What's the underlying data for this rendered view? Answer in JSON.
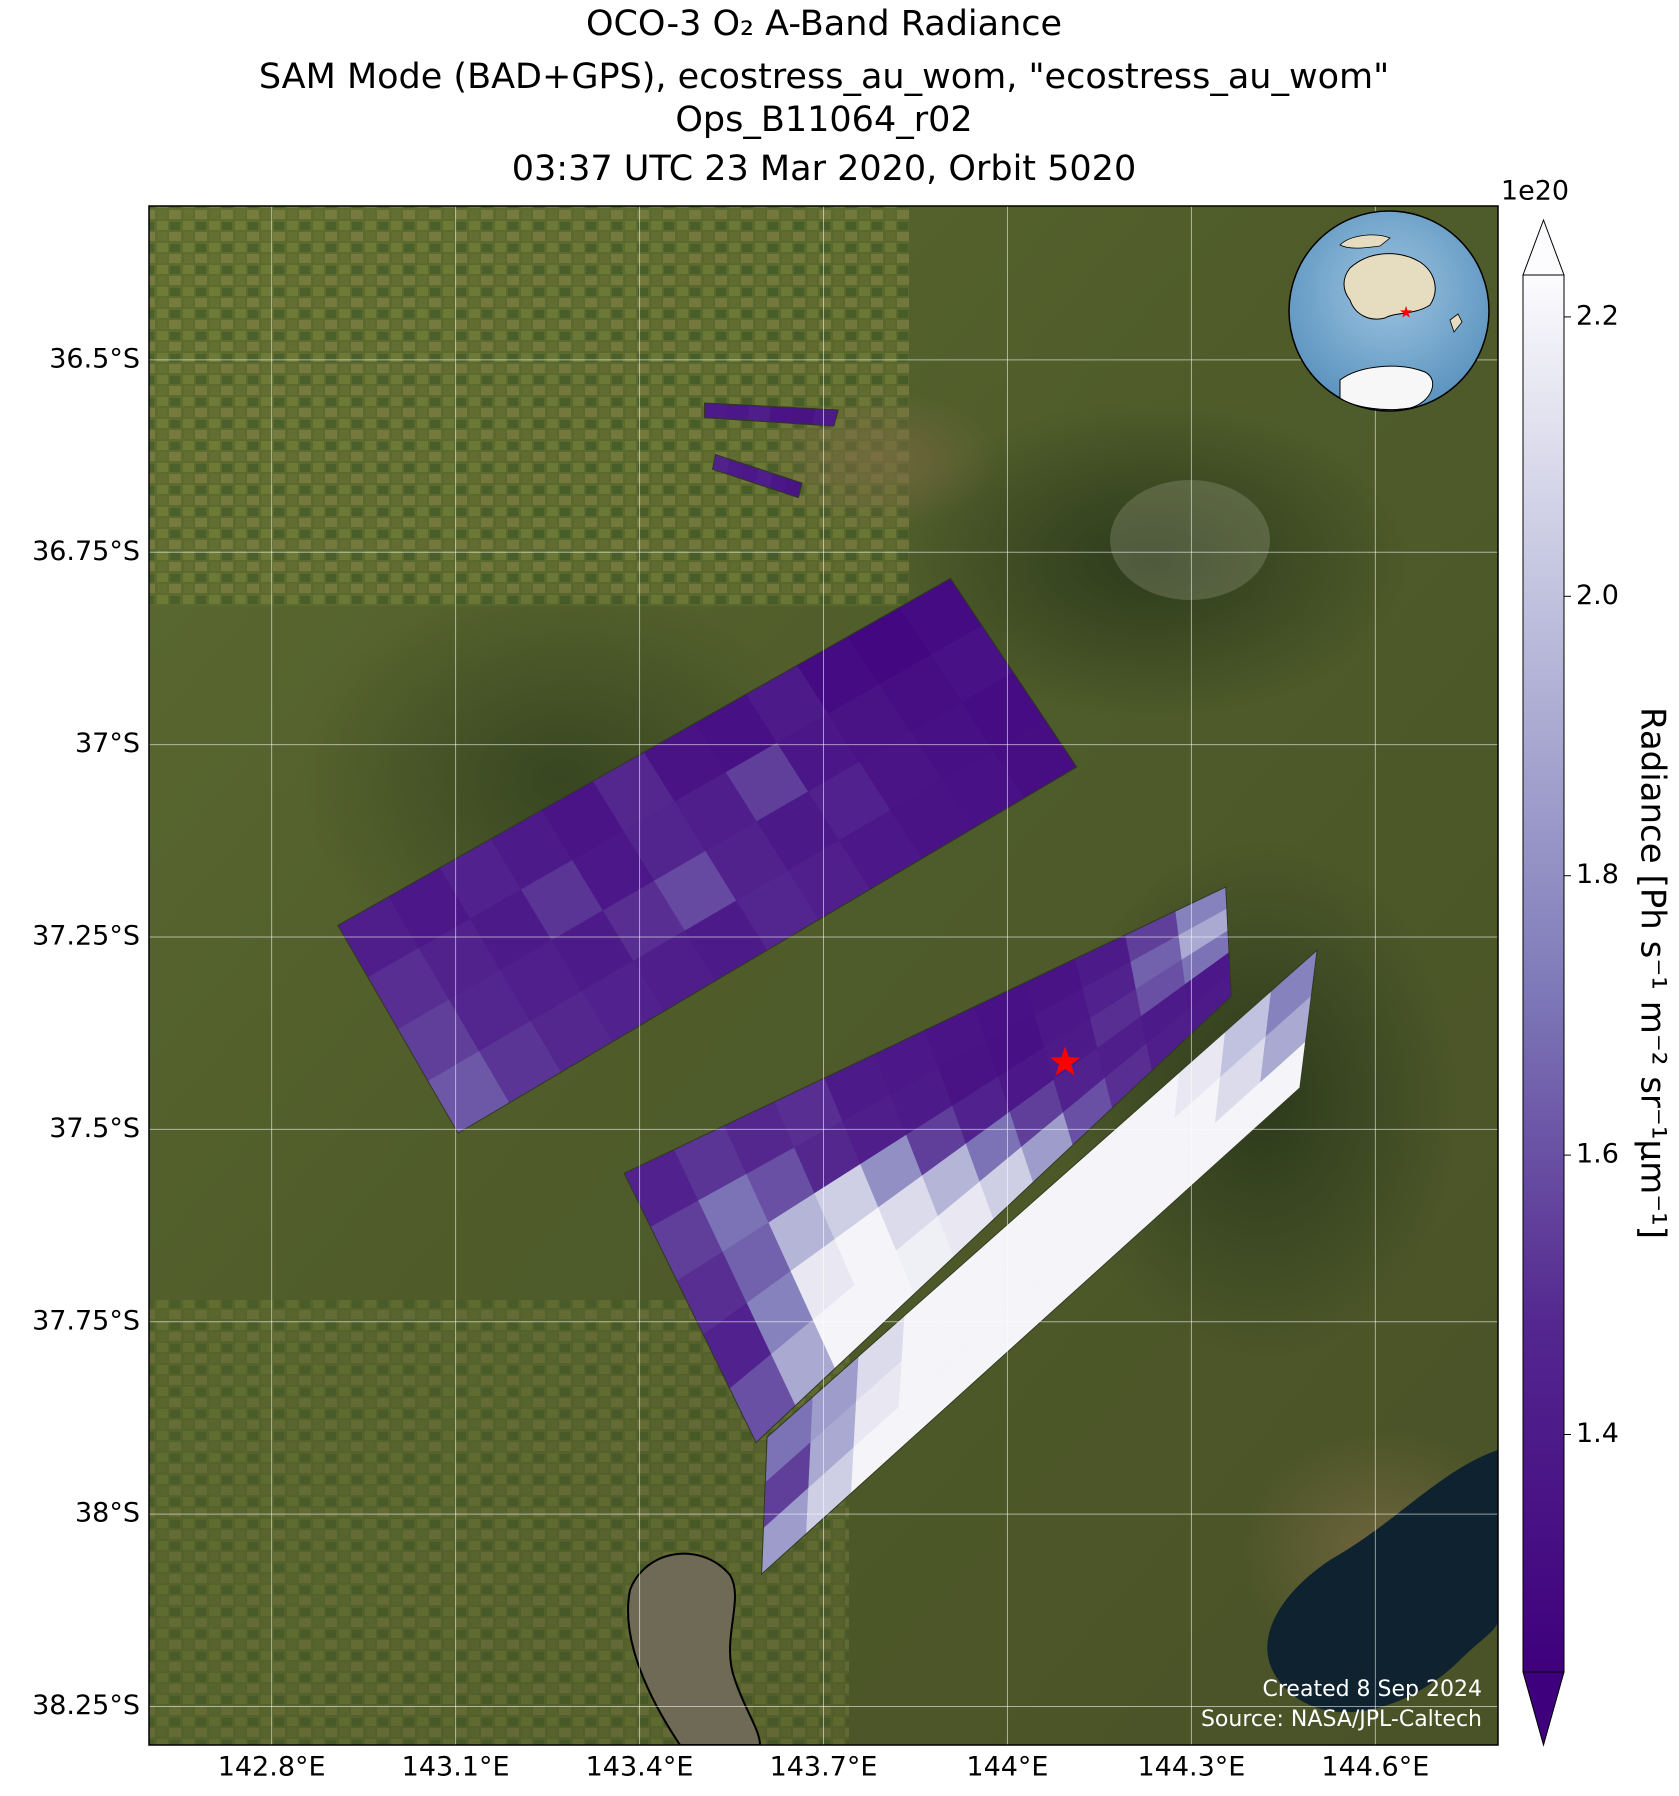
{
  "chart_data": {
    "type": "swath_map",
    "title_lines": [
      "OCO-3 O₂ A-Band Radiance",
      "SAM Mode (BAD+GPS), ecostress_au_wom, \"ecostress_au_wom\"",
      "Ops_B11064_r02",
      "03:37 UTC 23 Mar 2020, Orbit 5020"
    ],
    "xlim": [
      142.6,
      144.8
    ],
    "ylim": [
      -38.3,
      -36.3
    ],
    "xticks": [
      {
        "value": 142.8,
        "label": "142.8°E"
      },
      {
        "value": 143.1,
        "label": "143.1°E"
      },
      {
        "value": 143.4,
        "label": "143.4°E"
      },
      {
        "value": 143.7,
        "label": "143.7°E"
      },
      {
        "value": 144.0,
        "label": "144°E"
      },
      {
        "value": 144.3,
        "label": "144.3°E"
      },
      {
        "value": 144.6,
        "label": "144.6°E"
      }
    ],
    "yticks": [
      {
        "value": -36.5,
        "label": "36.5°S"
      },
      {
        "value": -36.75,
        "label": "36.75°S"
      },
      {
        "value": -37.0,
        "label": "37°S"
      },
      {
        "value": -37.25,
        "label": "37.25°S"
      },
      {
        "value": -37.5,
        "label": "37.5°S"
      },
      {
        "value": -37.75,
        "label": "37.75°S"
      },
      {
        "value": -38.0,
        "label": "38°S"
      },
      {
        "value": -38.25,
        "label": "38.25°S"
      }
    ],
    "grid": true,
    "colorbar": {
      "label": "Radiance [Ph s⁻¹ m⁻² sr⁻¹μm⁻¹]",
      "offset_label": "1e20",
      "lim": [
        1.23,
        2.23
      ],
      "ticks": [
        1.4,
        1.6,
        1.8,
        {
          "value": 2.0,
          "label": "2.0"
        },
        2.2
      ],
      "colormap": [
        "#3f007d",
        "#54278f",
        "#807dba",
        "#bcbddc",
        "#fcfbfd"
      ],
      "extend": "both"
    },
    "target": {
      "lon": 144.094,
      "lat": -37.413,
      "color": "#ff0000"
    },
    "swaths": [
      {
        "corners": [
          [
            142.908,
            -37.235
          ],
          [
            143.907,
            -36.784
          ],
          [
            144.113,
            -37.029
          ],
          [
            143.104,
            -37.505
          ]
        ],
        "values": [
          [
            1.42,
            1.38,
            1.45,
            1.4,
            1.36,
            1.48,
            1.35,
            1.33,
            1.4,
            1.3,
            1.28,
            1.3
          ],
          [
            1.5,
            1.44,
            1.4,
            1.52,
            1.38,
            1.46,
            1.42,
            1.55,
            1.37,
            1.35,
            1.32,
            1.34
          ],
          [
            1.55,
            1.47,
            1.43,
            1.4,
            1.5,
            1.58,
            1.44,
            1.39,
            1.45,
            1.36,
            1.33,
            1.31
          ],
          [
            1.62,
            1.52,
            1.48,
            1.45,
            1.42,
            1.4,
            1.47,
            1.43,
            1.38,
            1.35,
            1.34,
            1.32
          ]
        ]
      },
      {
        "corners": [
          [
            143.375,
            -37.557
          ],
          [
            144.356,
            -37.185
          ],
          [
            144.365,
            -37.327
          ],
          [
            143.59,
            -37.907
          ]
        ],
        "values": [
          [
            1.45,
            1.52,
            1.48,
            1.5,
            1.4,
            1.38,
            1.36,
            1.34,
            1.35,
            1.4,
            1.55,
            1.75
          ],
          [
            1.55,
            1.7,
            1.6,
            1.48,
            1.42,
            1.4,
            1.35,
            1.33,
            1.38,
            1.45,
            1.65,
            1.9
          ],
          [
            1.5,
            1.65,
            1.95,
            2.05,
            1.8,
            1.55,
            1.45,
            1.38,
            1.4,
            1.5,
            1.6,
            1.7
          ],
          [
            1.45,
            1.75,
            2.15,
            2.2,
            2.1,
            1.95,
            1.7,
            1.55,
            1.45,
            1.42,
            1.4,
            1.38
          ],
          [
            1.6,
            1.9,
            2.2,
            2.2,
            2.18,
            2.15,
            2.05,
            1.85,
            1.6,
            1.5,
            1.42,
            1.4
          ]
        ]
      },
      {
        "corners": [
          [
            143.608,
            -37.9
          ],
          [
            144.505,
            -37.267
          ],
          [
            144.477,
            -37.446
          ],
          [
            143.599,
            -38.078
          ]
        ],
        "values": [
          [
            1.7,
            1.85,
            2.1,
            2.2,
            2.2,
            2.2,
            2.2,
            2.2,
            2.2,
            2.15,
            2.0,
            1.75
          ],
          [
            1.55,
            1.9,
            2.15,
            2.2,
            2.2,
            2.2,
            2.2,
            2.2,
            2.2,
            2.2,
            2.1,
            1.9
          ],
          [
            1.85,
            2.05,
            2.2,
            2.2,
            2.2,
            2.2,
            2.2,
            2.2,
            2.2,
            2.2,
            2.2,
            2.2
          ]
        ]
      },
      {
        "corners": [
          [
            143.506,
            -36.556
          ],
          [
            143.724,
            -36.565
          ],
          [
            143.717,
            -36.586
          ],
          [
            143.506,
            -36.575
          ]
        ],
        "values": [
          [
            1.4,
            1.38,
            1.42,
            1.36,
            1.35,
            1.4
          ]
        ]
      },
      {
        "corners": [
          [
            143.524,
            -36.623
          ],
          [
            143.665,
            -36.66
          ],
          [
            143.659,
            -36.679
          ],
          [
            143.519,
            -36.642
          ]
        ],
        "values": [
          [
            1.45,
            1.4,
            1.38,
            1.42,
            1.37,
            1.36
          ]
        ]
      }
    ],
    "footer_lines": [
      "Created 8 Sep 2024",
      "Source: NASA/JPL-Caltech"
    ]
  }
}
